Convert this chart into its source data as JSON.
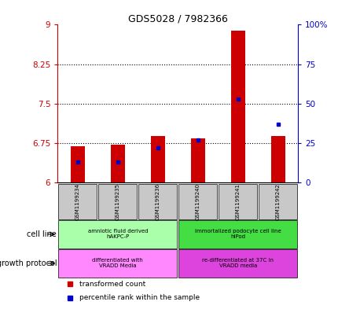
{
  "title": "GDS5028 / 7982366",
  "samples": [
    "GSM1199234",
    "GSM1199235",
    "GSM1199236",
    "GSM1199240",
    "GSM1199241",
    "GSM1199242"
  ],
  "transformed_counts": [
    6.7,
    6.72,
    6.88,
    6.84,
    8.88,
    6.88
  ],
  "percentile_ranks": [
    13,
    13,
    22,
    27,
    53,
    37
  ],
  "ylim_left": [
    6,
    9
  ],
  "ylim_right": [
    0,
    100
  ],
  "yticks_left": [
    6,
    6.75,
    7.5,
    8.25,
    9
  ],
  "yticks_right": [
    0,
    25,
    50,
    75,
    100
  ],
  "base_value": 6.0,
  "cell_line_groups": [
    {
      "label": "amniotic fluid derived\nhAKPC-P",
      "start": 0,
      "end": 3,
      "color": "#aaffaa"
    },
    {
      "label": "immortalized podocyte cell line\nhIPod",
      "start": 3,
      "end": 6,
      "color": "#44dd44"
    }
  ],
  "growth_protocol_groups": [
    {
      "label": "differentiated with\nVRADD Media",
      "start": 0,
      "end": 3,
      "color": "#ff88ff"
    },
    {
      "label": "re-differentiated at 37C in\nVRADD media",
      "start": 3,
      "end": 6,
      "color": "#dd44dd"
    }
  ],
  "bar_color": "#cc0000",
  "percentile_color": "#0000cc",
  "bar_width": 0.35,
  "sample_box_color": "#c8c8c8",
  "left_axis_color": "#cc0000",
  "right_axis_color": "#0000cc",
  "cell_line_label": "cell line",
  "growth_protocol_label": "growth protocol",
  "legend_items": [
    {
      "color": "#cc0000",
      "label": "transformed count"
    },
    {
      "color": "#0000cc",
      "label": "percentile rank within the sample"
    }
  ]
}
